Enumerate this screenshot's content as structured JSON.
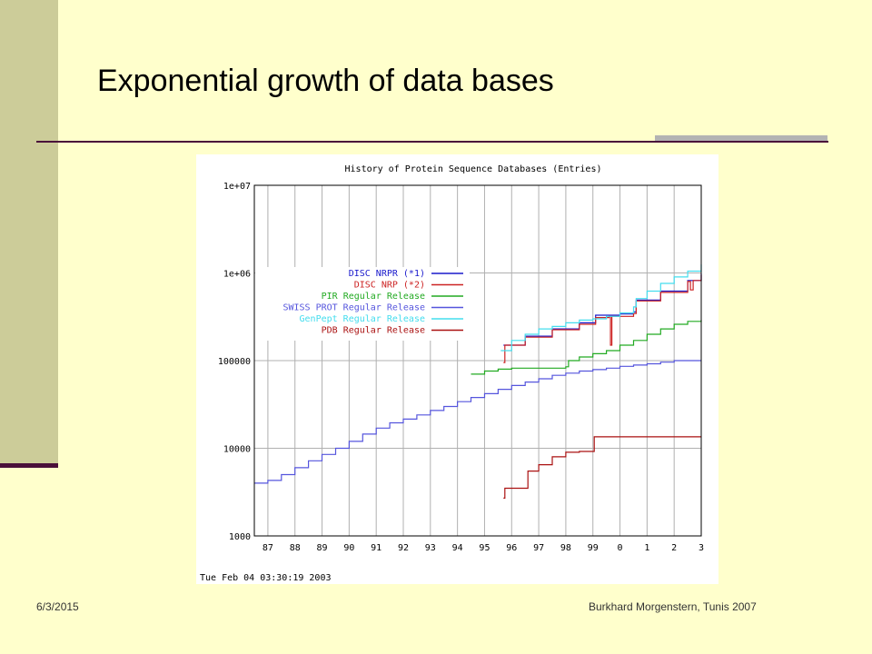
{
  "slide": {
    "title": "Exponential growth of data bases",
    "footer_date": "6/3/2015",
    "footer_author": "Burkhard Morgenstern, Tunis 2007"
  },
  "chart_data": {
    "type": "line",
    "title": "History of Protein Sequence Databases (Entries)",
    "timestamp": "Tue Feb 04 03:30:19 2003",
    "y_scale": "log",
    "ylim": [
      1000,
      10000000
    ],
    "y_ticks": [
      "1000",
      "10000",
      "100000",
      "1e+06",
      "1e+07"
    ],
    "y_tick_values": [
      1000,
      10000,
      100000,
      1000000,
      10000000
    ],
    "xlim": [
      1986.5,
      2003.0
    ],
    "x_tick_labels": [
      "87",
      "88",
      "89",
      "90",
      "91",
      "92",
      "93",
      "94",
      "95",
      "96",
      "97",
      "98",
      "99",
      "0",
      "1",
      "2",
      "3"
    ],
    "x_tick_values": [
      1987,
      1988,
      1989,
      1990,
      1991,
      1992,
      1993,
      1994,
      1995,
      1996,
      1997,
      1998,
      1999,
      2000,
      2001,
      2002,
      2003
    ],
    "grid": true,
    "legend_position": "upper-left",
    "series": [
      {
        "name": "DISC NRPR (*1)",
        "color": "#1a1acc",
        "points": [
          [
            1995.7,
            150000
          ],
          [
            1996.5,
            190000
          ],
          [
            1997.5,
            230000
          ],
          [
            1998.5,
            270000
          ],
          [
            1999.1,
            330000
          ],
          [
            2000.0,
            340000
          ],
          [
            2000.5,
            360000
          ],
          [
            2000.6,
            490000
          ],
          [
            2001.5,
            620000
          ],
          [
            2002.5,
            820000
          ],
          [
            2003.0,
            980000
          ]
        ]
      },
      {
        "name": "DISC NRP (*2)",
        "color": "#cc2222",
        "points": [
          [
            1995.7,
            95000
          ],
          [
            1995.75,
            150000
          ],
          [
            1996.5,
            185000
          ],
          [
            1997.5,
            225000
          ],
          [
            1998.5,
            260000
          ],
          [
            1999.1,
            310000
          ],
          [
            1999.6,
            320000
          ],
          [
            1999.65,
            150000
          ],
          [
            1999.7,
            320000
          ],
          [
            2000.5,
            345000
          ],
          [
            2000.6,
            480000
          ],
          [
            2001.5,
            600000
          ],
          [
            2002.5,
            800000
          ],
          [
            2002.6,
            640000
          ],
          [
            2002.7,
            820000
          ],
          [
            2003.0,
            950000
          ]
        ]
      },
      {
        "name": "PIR Regular Release",
        "color": "#22aa22",
        "points": [
          [
            1994.5,
            70000
          ],
          [
            1995,
            76000
          ],
          [
            1995.5,
            80000
          ],
          [
            1996,
            82000
          ],
          [
            1997,
            82000
          ],
          [
            1998,
            85000
          ],
          [
            1998.1,
            100000
          ],
          [
            1998.5,
            110000
          ],
          [
            1999,
            120000
          ],
          [
            1999.5,
            130000
          ],
          [
            2000,
            150000
          ],
          [
            2000.5,
            170000
          ],
          [
            2001,
            200000
          ],
          [
            2001.5,
            230000
          ],
          [
            2002,
            260000
          ],
          [
            2002.5,
            280000
          ],
          [
            2003,
            290000
          ]
        ]
      },
      {
        "name": "SWISS PROT Regular Release",
        "color": "#5555dd",
        "points": [
          [
            1986.5,
            4000
          ],
          [
            1987,
            4300
          ],
          [
            1987.5,
            5000
          ],
          [
            1988,
            6000
          ],
          [
            1988.5,
            7200
          ],
          [
            1989,
            8500
          ],
          [
            1989.5,
            10000
          ],
          [
            1990,
            12000
          ],
          [
            1990.5,
            14500
          ],
          [
            1991,
            17000
          ],
          [
            1991.5,
            19500
          ],
          [
            1992,
            21500
          ],
          [
            1992.5,
            24000
          ],
          [
            1993,
            27000
          ],
          [
            1993.5,
            30000
          ],
          [
            1994,
            34000
          ],
          [
            1994.5,
            38000
          ],
          [
            1995,
            42000
          ],
          [
            1995.5,
            47000
          ],
          [
            1996,
            52000
          ],
          [
            1996.5,
            57000
          ],
          [
            1997,
            62000
          ],
          [
            1997.5,
            68000
          ],
          [
            1998,
            72000
          ],
          [
            1998.5,
            76000
          ],
          [
            1999,
            79000
          ],
          [
            1999.5,
            82000
          ],
          [
            2000,
            86000
          ],
          [
            2000.5,
            89000
          ],
          [
            2001,
            92000
          ],
          [
            2001.5,
            96000
          ],
          [
            2002,
            100000
          ],
          [
            2003,
            100000
          ]
        ]
      },
      {
        "name": "GenPept Regular Release",
        "color": "#44ddee",
        "points": [
          [
            1995.6,
            130000
          ],
          [
            1996,
            170000
          ],
          [
            1996.5,
            200000
          ],
          [
            1997,
            230000
          ],
          [
            1997.5,
            245000
          ],
          [
            1998,
            270000
          ],
          [
            1998.5,
            290000
          ],
          [
            1999,
            300000
          ],
          [
            1999.5,
            320000
          ],
          [
            2000,
            350000
          ],
          [
            2000.5,
            410000
          ],
          [
            2000.6,
            510000
          ],
          [
            2001,
            620000
          ],
          [
            2001.5,
            760000
          ],
          [
            2002,
            900000
          ],
          [
            2002.5,
            1050000
          ],
          [
            2003,
            1250000
          ]
        ]
      },
      {
        "name": "PDB Regular Release",
        "color": "#aa1111",
        "points": [
          [
            1995.7,
            2700
          ],
          [
            1995.75,
            3500
          ],
          [
            1996.5,
            3500
          ],
          [
            1996.6,
            5500
          ],
          [
            1997,
            6500
          ],
          [
            1997.5,
            8000
          ],
          [
            1998,
            9000
          ],
          [
            1998.5,
            9200
          ],
          [
            1999,
            9200
          ],
          [
            1999.05,
            13500
          ],
          [
            2000,
            13500
          ],
          [
            2001,
            13500
          ],
          [
            2002,
            13500
          ],
          [
            2003,
            13500
          ]
        ]
      }
    ]
  },
  "colors": {
    "background": "#ffffcc",
    "sidebar": "#cccc99",
    "accent_dark": "#4a0f3a",
    "accent_grey": "#b3b3b3"
  }
}
